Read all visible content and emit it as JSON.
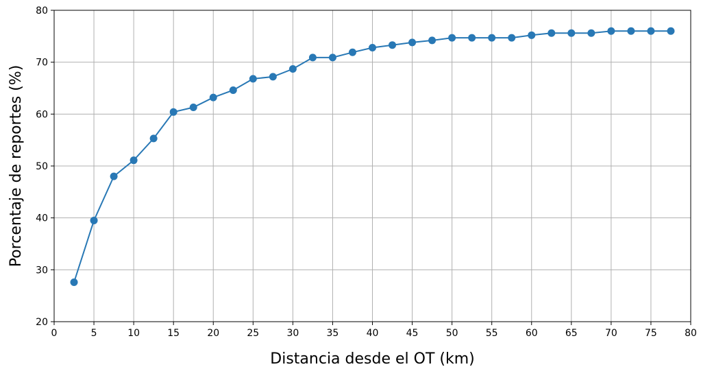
{
  "chart_data": {
    "type": "line",
    "title": "",
    "xlabel": "Distancia desde el OT (km)",
    "ylabel": "Porcentaje de reportes (%)",
    "xlim": [
      0,
      80
    ],
    "ylim": [
      20,
      80
    ],
    "xticks": [
      0,
      5,
      10,
      15,
      20,
      25,
      30,
      35,
      40,
      45,
      50,
      55,
      60,
      65,
      70,
      75,
      80
    ],
    "yticks": [
      20,
      30,
      40,
      50,
      60,
      70,
      80
    ],
    "grid": true,
    "color": "#2878b5",
    "x": [
      2.5,
      5,
      7.5,
      10,
      12.5,
      15,
      17.5,
      20,
      22.5,
      25,
      27.5,
      30,
      32.5,
      35,
      37.5,
      40,
      42.5,
      45,
      47.5,
      50,
      52.5,
      55,
      57.5,
      60,
      62.5,
      65,
      67.5,
      70,
      72.5,
      75,
      77.5
    ],
    "y": [
      27.6,
      39.5,
      48.0,
      51.1,
      55.3,
      60.4,
      61.3,
      63.2,
      64.6,
      66.8,
      67.2,
      68.7,
      70.9,
      70.9,
      71.9,
      72.8,
      73.3,
      73.8,
      74.2,
      74.7,
      74.7,
      74.7,
      74.7,
      75.2,
      75.6,
      75.6,
      75.6,
      76.0,
      76.0,
      76.0,
      76.0
    ]
  }
}
